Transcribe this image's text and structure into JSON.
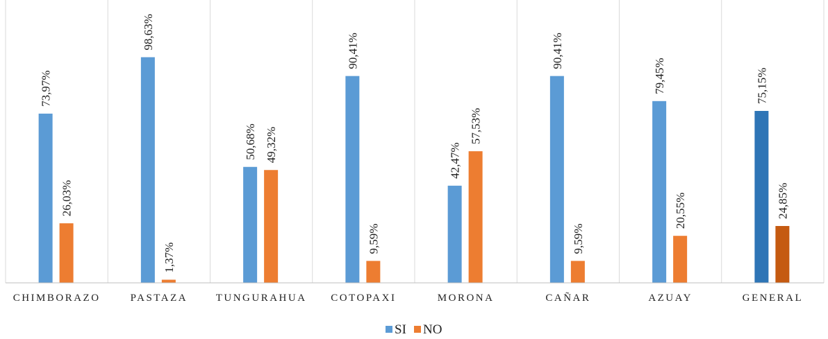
{
  "chart_data": {
    "type": "bar",
    "categories": [
      "CHIMBORAZO",
      "PASTAZA",
      "TUNGURAHUA",
      "COTOPAXI",
      "MORONA",
      "CAÑAR",
      "AZUAY",
      "GENERAL"
    ],
    "series": [
      {
        "name": "SI",
        "values": [
          73.97,
          98.63,
          50.68,
          90.41,
          42.47,
          90.41,
          79.45,
          75.15
        ],
        "labels": [
          "73,97%",
          "98,63%",
          "50,68%",
          "90,41%",
          "42,47%",
          "90,41%",
          "79,45%",
          "75,15%"
        ],
        "color": "#5B9BD5",
        "highlight_color": "#2E75B6"
      },
      {
        "name": "NO",
        "values": [
          26.03,
          1.37,
          49.32,
          9.59,
          57.53,
          9.59,
          20.55,
          24.85
        ],
        "labels": [
          "26,03%",
          "1,37%",
          "49,32%",
          "9,59%",
          "57,53%",
          "9,59%",
          "20,55%",
          "24,85%"
        ],
        "color": "#ED7D31",
        "highlight_color": "#C55A11"
      }
    ],
    "highlight_category": "GENERAL",
    "ylim": [
      0,
      100
    ],
    "grid": false,
    "category_separators": true,
    "legend": "bottom-center"
  }
}
